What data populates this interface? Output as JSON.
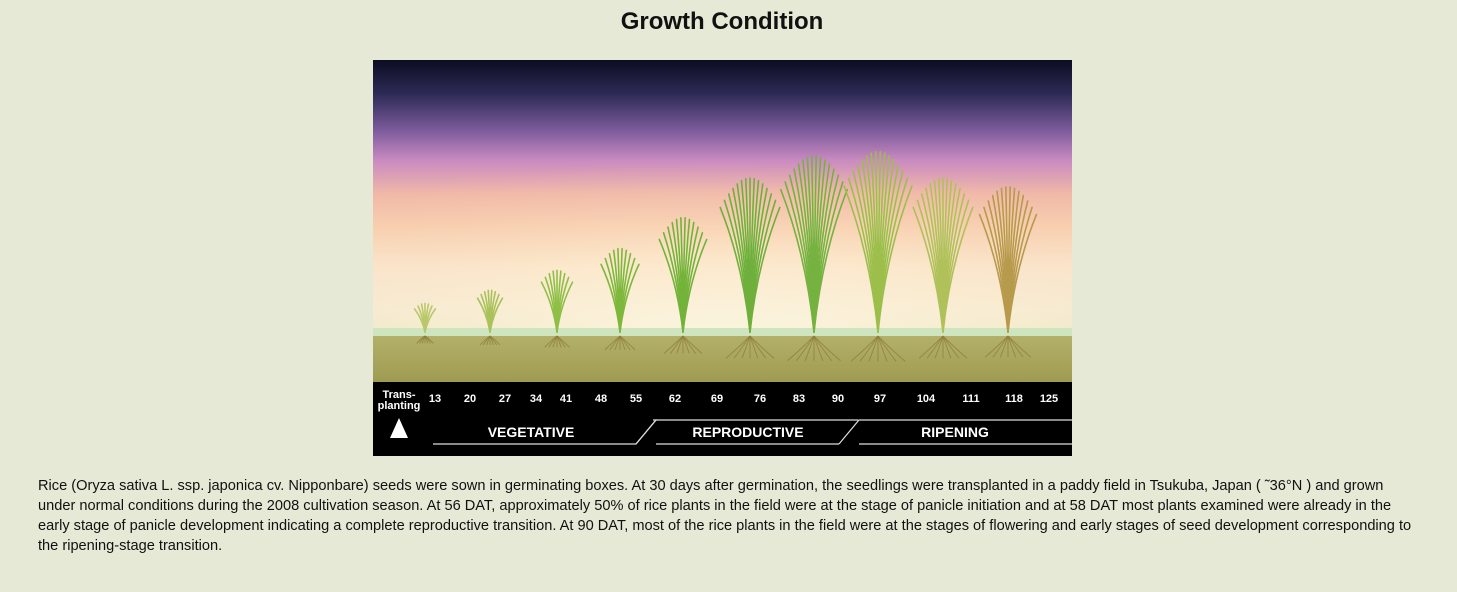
{
  "title": "Growth Condition",
  "timeline": {
    "start_label_line1": "Trans-",
    "start_label_line2": "planting",
    "ticks": [
      "13",
      "20",
      "27",
      "34",
      "41",
      "48",
      "55",
      "62",
      "69",
      "76",
      "83",
      "90",
      "97",
      "104",
      "111",
      "118",
      "125"
    ],
    "stages": [
      "VEGETATIVE",
      "REPRODUCTIVE",
      "RIPENING"
    ]
  },
  "plants": [
    {
      "height": 0.13,
      "color": "#b9c86a"
    },
    {
      "height": 0.19,
      "color": "#aac25b"
    },
    {
      "height": 0.28,
      "color": "#8fbf46"
    },
    {
      "height": 0.38,
      "color": "#7db83c"
    },
    {
      "height": 0.52,
      "color": "#73b33a"
    },
    {
      "height": 0.7,
      "color": "#6fb03c"
    },
    {
      "height": 0.8,
      "color": "#75b240"
    },
    {
      "height": 0.82,
      "color": "#9cbf4c"
    },
    {
      "height": 0.7,
      "color": "#b0c15a"
    },
    {
      "height": 0.66,
      "color": "#b89a4c"
    }
  ],
  "colors": {
    "page_background": "#e6e9d6",
    "timeline_background": "#000000",
    "soil": "#a7a45a",
    "water_line": "#cfe5c0"
  },
  "caption": "Rice (Oryza sativa L. ssp. japonica cv. Nipponbare) seeds were sown in germinating boxes. At 30 days after germination, the seedlings were transplanted in a paddy field in Tsukuba, Japan ( ˜36°N ) and grown under normal conditions during the 2008 cultivation season. At 56 DAT, approximately 50% of rice plants in the field were at the stage of panicle initiation and at 58 DAT most plants examined were already in the early stage of panicle development indicating a complete reproductive transition. At 90 DAT, most of the rice plants in the field were at the stages of flowering and early stages of seed development corresponding to the ripening-stage transition."
}
